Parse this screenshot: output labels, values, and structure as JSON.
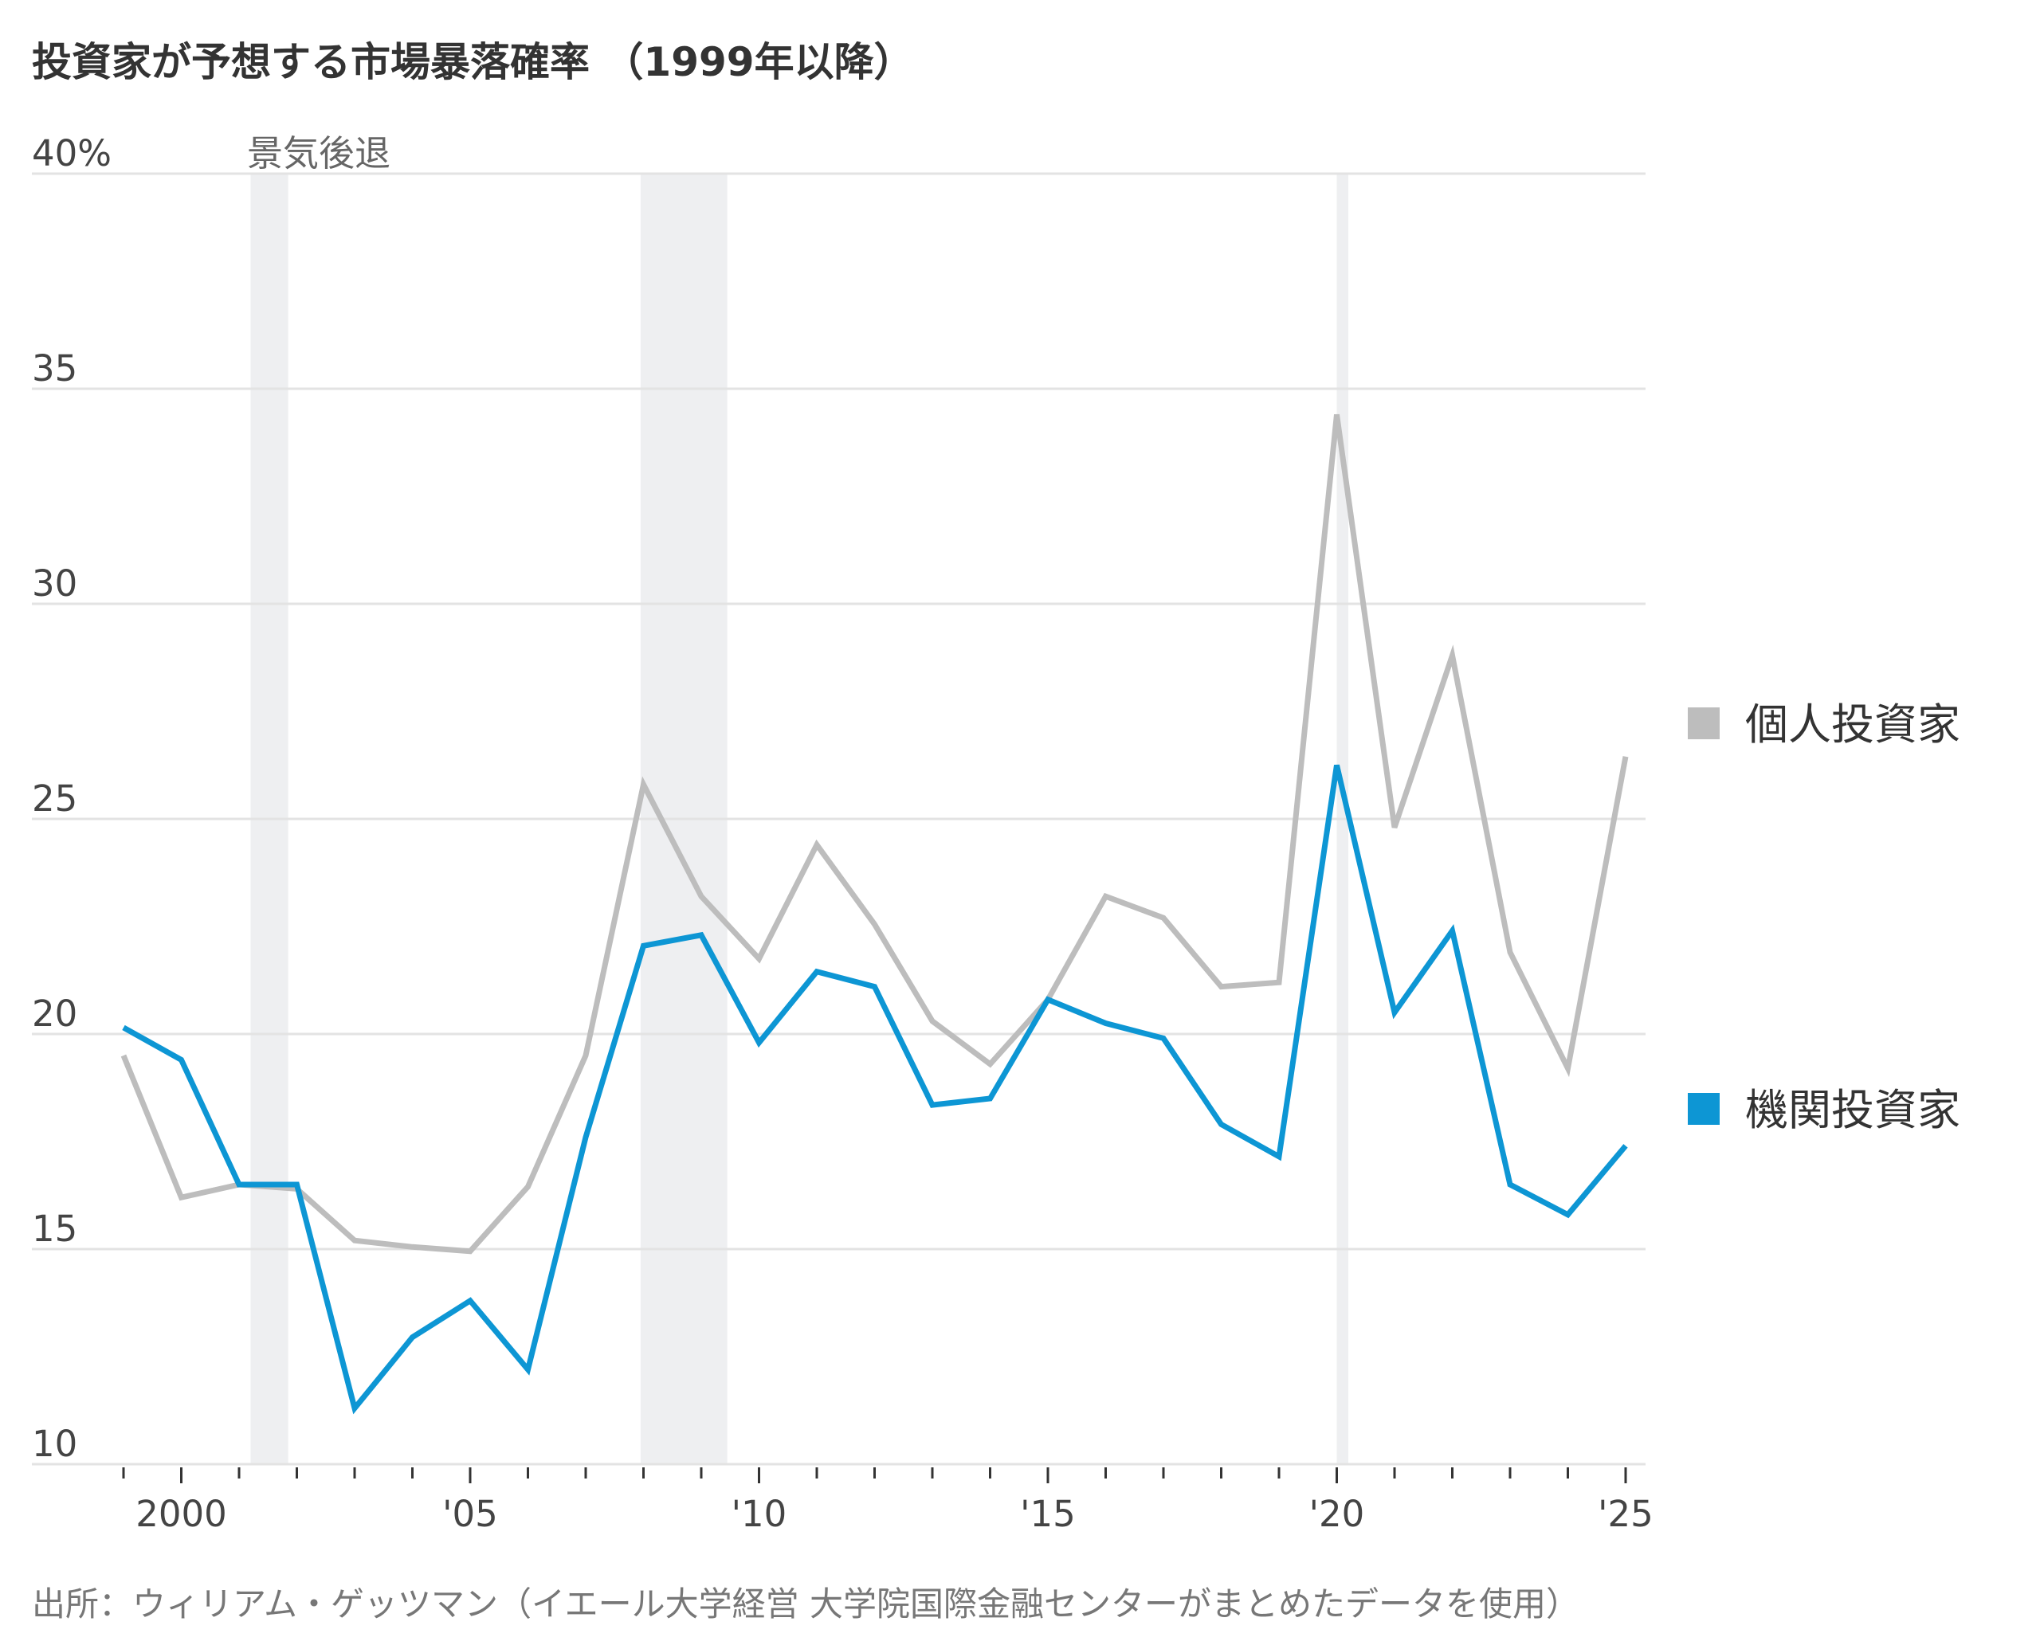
{
  "chart_data": {
    "type": "line",
    "title": "投資家が予想する市場暴落確率 （1999年以降）",
    "ylim": [
      10,
      40
    ],
    "y_ticks": [
      {
        "value": 40,
        "label": "40%"
      },
      {
        "value": 35,
        "label": "35"
      },
      {
        "value": 30,
        "label": "30"
      },
      {
        "value": 25,
        "label": "25"
      },
      {
        "value": 20,
        "label": "20"
      },
      {
        "value": 15,
        "label": "15"
      },
      {
        "value": 10,
        "label": "10"
      }
    ],
    "x_ticks": [
      {
        "value": 2000,
        "label": "2000"
      },
      {
        "value": 2005,
        "label": "'05"
      },
      {
        "value": 2010,
        "label": "'10"
      },
      {
        "value": 2015,
        "label": "'15"
      },
      {
        "value": 2020,
        "label": "'20"
      },
      {
        "value": 2025,
        "label": "'25"
      }
    ],
    "xlim": [
      1999,
      2025
    ],
    "recession_label": "景気後退",
    "recessions": [
      [
        2001.2,
        2001.85
      ],
      [
        2007.95,
        2009.45
      ],
      [
        2020.0,
        2020.2
      ]
    ],
    "grid": "horizontal",
    "legend_position": "right",
    "x": [
      1999,
      2000,
      2001,
      2002,
      2003,
      2004,
      2005,
      2006,
      2007,
      2008,
      2009,
      2010,
      2011,
      2012,
      2013,
      2014,
      2015,
      2016,
      2017,
      2018,
      2019,
      2020,
      2021,
      2022,
      2023,
      2024,
      2025
    ],
    "series": [
      {
        "name": "個人投資家",
        "color": "#bdbdbd",
        "values": [
          19.5,
          16.2,
          16.5,
          16.4,
          15.2,
          15.05,
          14.95,
          16.45,
          19.5,
          25.8,
          23.2,
          21.75,
          24.4,
          22.55,
          20.3,
          19.3,
          20.8,
          23.2,
          22.7,
          21.1,
          21.2,
          34.4,
          24.8,
          28.8,
          21.9,
          19.2,
          26.45
        ]
      },
      {
        "name": "機関投資家",
        "color": "#0d96d4",
        "values": [
          20.15,
          19.4,
          16.5,
          16.5,
          11.3,
          12.95,
          13.8,
          12.2,
          17.6,
          22.05,
          22.3,
          19.8,
          21.45,
          21.1,
          18.35,
          18.5,
          20.8,
          20.25,
          19.9,
          17.9,
          17.15,
          26.25,
          20.5,
          22.4,
          16.5,
          15.8,
          17.4
        ]
      }
    ]
  },
  "source": "出所：ウィリアム・ゲッツマン（イエール大学経営 大学院国際金融センターがまとめたデータを使用）"
}
